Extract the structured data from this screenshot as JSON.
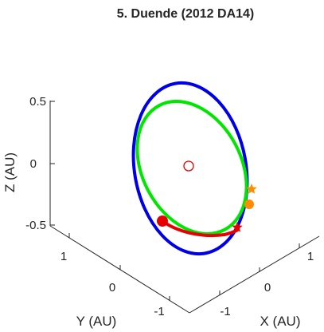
{
  "chart_data": {
    "type": "line",
    "title": "5. Duende (2012 DA14)",
    "xlabel": "X (AU)",
    "ylabel": "Y (AU)",
    "zlabel": "Z (AU)",
    "x_ticks": [
      "-1",
      "0",
      "1"
    ],
    "y_ticks": [
      "1",
      "0",
      "-1"
    ],
    "z_ticks": [
      "0.5",
      "0",
      "-0.5"
    ],
    "zlim": [
      -0.5,
      0.5
    ],
    "grid": false,
    "legend": "none",
    "series": [
      {
        "color": "#0000e6",
        "kind": "orbit-ellipse"
      },
      {
        "color": "#00e600",
        "kind": "orbit-ellipse"
      },
      {
        "color": "#e60000",
        "kind": "transfer-arc"
      }
    ],
    "markers": [
      {
        "kind": "sun",
        "shape": "circle-open",
        "color": "#e60000"
      },
      {
        "kind": "body",
        "shape": "circle-filled",
        "color": "#e60000"
      },
      {
        "kind": "body",
        "shape": "circle-filled",
        "color": "#ff8c00"
      },
      {
        "kind": "event",
        "shape": "star",
        "color": "#e60000"
      },
      {
        "kind": "event",
        "shape": "star",
        "color": "#ff8c00"
      }
    ]
  }
}
